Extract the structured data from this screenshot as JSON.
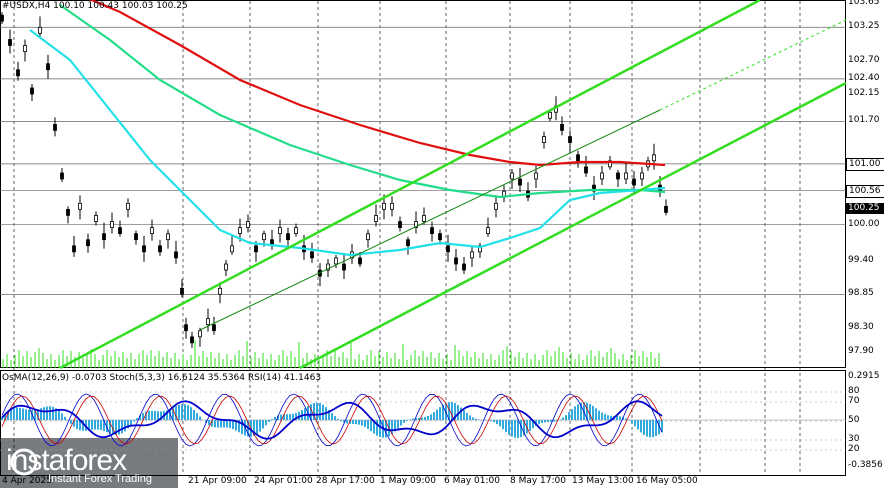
{
  "header": {
    "symbol_line": "#USDX,H4  100.10 100.43 100.03 100.25"
  },
  "indicator_header": "OsMA(12,26,9) -0.0703  Stoch(5,3,3) 16.6124 35.5364  RSI(14) 41.1463",
  "price_labels": [
    "103.65",
    "103.25",
    "102.70",
    "102.40",
    "102.15",
    "101.70",
    "101.00",
    "100.56",
    "100.25",
    "100.00",
    "99.40",
    "98.85",
    "98.30",
    "97.90"
  ],
  "indicator_labels": {
    "top": "0.2915",
    "bottom": "-0.3856",
    "levels": [
      "80",
      "70",
      "50",
      "30",
      "20"
    ]
  },
  "time_labels": [
    "4 Apr 2025",
    "21 Apr 09:00",
    "24 Apr 01:00",
    "28 Apr 17:00",
    "1 May 09:00",
    "6 May 01:00",
    "8 May 17:00",
    "13 May 13:00",
    "16 May 05:00"
  ],
  "logo": {
    "name": "instaforex",
    "tagline": "Instant Forex Trading"
  },
  "colors": {
    "ma_red": "#e01010",
    "ma_green": "#22dd88",
    "ma_cyan": "#22e0e8",
    "channel": "#33dd22",
    "histogram": "#33aadd",
    "rsi": "#0000cc",
    "stoch": "#cc0000"
  }
}
